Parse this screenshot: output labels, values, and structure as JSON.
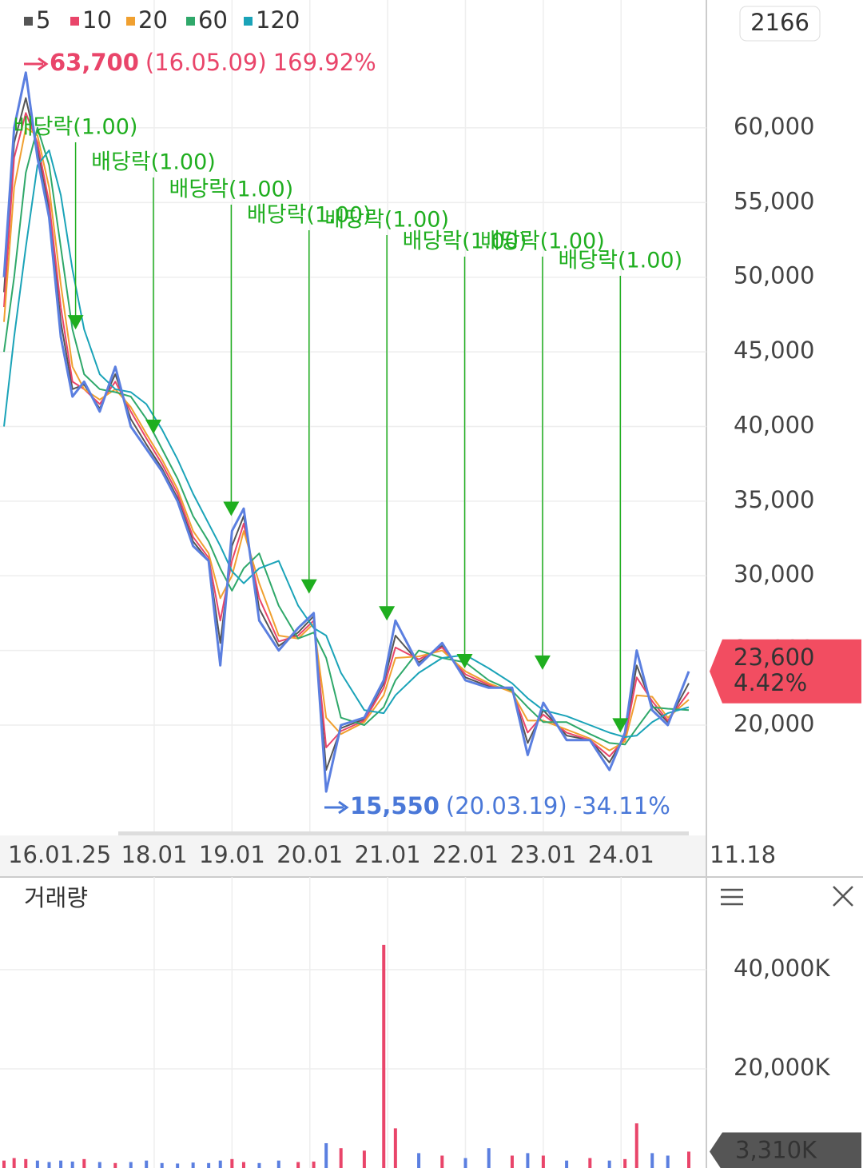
{
  "chart_data": {
    "type": "line",
    "x": [
      2016.07,
      2016.2,
      2016.35,
      2016.5,
      2016.65,
      2016.8,
      2016.95,
      2017.1,
      2017.3,
      2017.5,
      2017.7,
      2017.9,
      2018.1,
      2018.3,
      2018.5,
      2018.7,
      2018.85,
      2019.0,
      2019.15,
      2019.35,
      2019.6,
      2019.85,
      2020.05,
      2020.21,
      2020.4,
      2020.7,
      2020.95,
      2021.1,
      2021.4,
      2021.7,
      2022.0,
      2022.3,
      2022.6,
      2022.8,
      2023.0,
      2023.3,
      2023.6,
      2023.85,
      2024.05,
      2024.2,
      2024.4,
      2024.6,
      2024.87
    ],
    "close": {
      "color": "#5b7fe0",
      "values": [
        50000,
        60000,
        63700,
        58000,
        54000,
        46000,
        42000,
        43000,
        41000,
        44000,
        40000,
        38500,
        37000,
        35000,
        32000,
        31000,
        24000,
        33000,
        34500,
        27000,
        25000,
        26500,
        27500,
        15550,
        20000,
        20500,
        23000,
        27000,
        24000,
        25500,
        23000,
        22500,
        22500,
        18000,
        21500,
        19000,
        19000,
        17000,
        19500,
        25000,
        21000,
        20000,
        23600
      ]
    },
    "series": [
      {
        "name": "5",
        "color": "#555555",
        "values": [
          49000,
          59000,
          62000,
          58500,
          54500,
          47000,
          42500,
          42800,
          41200,
          43500,
          40500,
          38800,
          37200,
          35200,
          32300,
          31000,
          25500,
          32000,
          34000,
          27800,
          25300,
          26200,
          27300,
          17000,
          19800,
          20400,
          22800,
          26000,
          24200,
          25300,
          23200,
          22600,
          22400,
          18800,
          21000,
          19300,
          19000,
          17500,
          19300,
          24000,
          21300,
          20200,
          22800
        ]
      },
      {
        "name": "10",
        "color": "#e9456a",
        "values": [
          48000,
          58000,
          61000,
          59000,
          55000,
          48000,
          43000,
          42500,
          41500,
          43000,
          41000,
          39200,
          37500,
          35500,
          32600,
          31200,
          27000,
          31000,
          33500,
          28500,
          25600,
          26000,
          27000,
          18500,
          19600,
          20300,
          22500,
          25200,
          24400,
          25200,
          23400,
          22700,
          22300,
          19500,
          20700,
          19500,
          19000,
          17900,
          19100,
          23200,
          21600,
          20300,
          22200
        ]
      },
      {
        "name": "20",
        "color": "#f0a030",
        "values": [
          47000,
          56000,
          60000,
          59500,
          56000,
          49500,
          44000,
          42500,
          41800,
          42500,
          41300,
          39500,
          37800,
          35800,
          33000,
          31500,
          28500,
          30000,
          33000,
          29500,
          26000,
          25800,
          26800,
          20500,
          19400,
          20200,
          22000,
          24500,
          24600,
          25000,
          23600,
          22800,
          22200,
          20300,
          20300,
          19700,
          19100,
          18300,
          18900,
          22000,
          21900,
          20500,
          21700
        ]
      },
      {
        "name": "60",
        "color": "#2fa86a",
        "values": [
          45000,
          50000,
          57000,
          60000,
          57500,
          52000,
          46500,
          43500,
          42500,
          42300,
          42000,
          40500,
          38500,
          36500,
          34000,
          32300,
          30500,
          29000,
          30500,
          31500,
          28000,
          25800,
          26200,
          24500,
          20500,
          20000,
          21200,
          23000,
          25000,
          24500,
          24200,
          23000,
          22300,
          21200,
          20200,
          20200,
          19400,
          18800,
          18700,
          19800,
          21200,
          21100,
          21000
        ]
      },
      {
        "name": "120",
        "color": "#1aa3b8",
        "values": [
          40000,
          46000,
          52000,
          57500,
          58500,
          55500,
          50500,
          46500,
          43500,
          42500,
          42300,
          41500,
          39800,
          37800,
          35500,
          33500,
          32000,
          30300,
          29500,
          30500,
          31000,
          28000,
          26500,
          26000,
          23500,
          21000,
          20800,
          22000,
          23500,
          24500,
          24700,
          23800,
          22800,
          21800,
          21000,
          20600,
          20000,
          19500,
          19200,
          19300,
          20200,
          20800,
          21200
        ]
      }
    ],
    "xlim": [
      2016.07,
      2024.87
    ],
    "xticks": [
      {
        "value": 2016.07,
        "label": "16.01.25"
      },
      {
        "value": 2018.0,
        "label": "18.01"
      },
      {
        "value": 2019.0,
        "label": "19.01"
      },
      {
        "value": 2020.0,
        "label": "20.01"
      },
      {
        "value": 2021.0,
        "label": "21.01"
      },
      {
        "value": 2022.0,
        "label": "22.01"
      },
      {
        "value": 2023.0,
        "label": "23.01"
      },
      {
        "value": 2024.0,
        "label": "24.01"
      }
    ],
    "ylim": [
      12880,
      67760
    ],
    "yticks": [
      {
        "value": 20000,
        "label": "20,000"
      },
      {
        "value": 25000,
        "label": "25,000"
      },
      {
        "value": 30000,
        "label": "30,000"
      },
      {
        "value": 35000,
        "label": "35,000"
      },
      {
        "value": 40000,
        "label": "40,000"
      },
      {
        "value": 45000,
        "label": "45,000"
      },
      {
        "value": 50000,
        "label": "50,000"
      },
      {
        "value": 55000,
        "label": "55,000"
      },
      {
        "value": 60000,
        "label": "60,000"
      }
    ],
    "grid": true,
    "count": 2166,
    "high": {
      "price": "63,700",
      "date": "(16.05.09)",
      "change": "169.92%"
    },
    "low": {
      "price": "15,550",
      "date": "(20.03.19)",
      "change": "-34.11%"
    },
    "last": {
      "value": 23600,
      "label": "23,600",
      "change": "4.42%",
      "date": "11.18"
    },
    "dividends": [
      {
        "x": 2016.99,
        "value": 46500,
        "label": "배당락(1.00)"
      },
      {
        "x": 2017.99,
        "value": 39500,
        "label": "배당락(1.00)"
      },
      {
        "x": 2018.99,
        "value": 34000,
        "label": "배당락(1.00)"
      },
      {
        "x": 2019.99,
        "value": 28800,
        "label": "배당락(1.00)"
      },
      {
        "x": 2020.99,
        "value": 27000,
        "label": "배당락(1.00)"
      },
      {
        "x": 2021.99,
        "value": 23800,
        "label": "배당락(1.00)"
      },
      {
        "x": 2022.99,
        "value": 23700,
        "label": "배당락(1.00)"
      },
      {
        "x": 2023.99,
        "value": 19500,
        "label": "배당락(1.00)"
      }
    ],
    "volume": {
      "title": "거래량",
      "values": [
        1500,
        2000,
        1800,
        1500,
        1200,
        1500,
        1300,
        1800,
        1200,
        1000,
        1200,
        1500,
        1000,
        900,
        1100,
        1000,
        1500,
        1800,
        1200,
        1000,
        1500,
        1200,
        1300,
        5000,
        4000,
        3500,
        45000,
        8000,
        3000,
        2500,
        2000,
        4000,
        2500,
        3000,
        2500,
        1500,
        2000,
        1500,
        1800,
        9000,
        3000,
        2500,
        3310
      ],
      "ylim": [
        0,
        58200
      ],
      "yticks": [
        {
          "value": 20000,
          "label": "20,000K"
        },
        {
          "value": 40000,
          "label": "40,000K"
        }
      ],
      "last": {
        "value": 3310,
        "label": "3,310K"
      }
    }
  }
}
